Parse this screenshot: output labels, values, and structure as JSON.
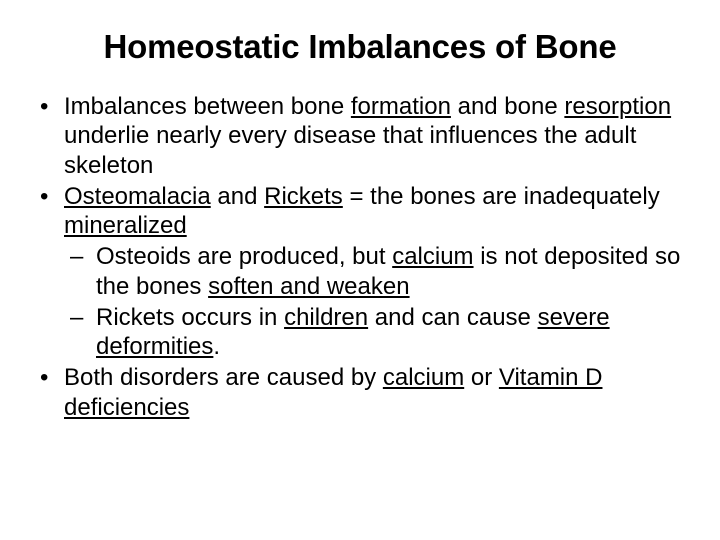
{
  "slide": {
    "title": "Homeostatic Imbalances of Bone",
    "title_fontsize": 33,
    "body_fontsize": 24,
    "background_color": "#ffffff",
    "text_color": "#000000",
    "font_family": "Arial",
    "bullets": [
      {
        "segments": [
          {
            "t": "Imbalances between bone ",
            "u": false
          },
          {
            "t": "formation",
            "u": true
          },
          {
            "t": " and bone ",
            "u": false
          },
          {
            "t": "resorption",
            "u": true
          },
          {
            "t": " underlie nearly every disease that influences the adult skeleton",
            "u": false
          }
        ]
      },
      {
        "segments": [
          {
            "t": "Osteomalacia",
            "u": true
          },
          {
            "t": " and ",
            "u": false
          },
          {
            "t": "Rickets",
            "u": true
          },
          {
            "t": " = the bones are inadequately ",
            "u": false
          },
          {
            "t": "mineralized",
            "u": true
          }
        ],
        "children": [
          {
            "segments": [
              {
                "t": "Osteoids are produced, but ",
                "u": false
              },
              {
                "t": "calcium",
                "u": true
              },
              {
                "t": " is not deposited so the bones ",
                "u": false
              },
              {
                "t": "soften and weaken",
                "u": true
              }
            ]
          },
          {
            "segments": [
              {
                "t": "Rickets occurs in ",
                "u": false
              },
              {
                "t": "children",
                "u": true
              },
              {
                "t": " and can cause ",
                "u": false
              },
              {
                "t": "severe deformities",
                "u": true
              },
              {
                "t": ".",
                "u": false
              }
            ]
          }
        ]
      },
      {
        "segments": [
          {
            "t": "Both disorders are caused by ",
            "u": false
          },
          {
            "t": "calcium",
            "u": true
          },
          {
            "t": " or ",
            "u": false
          },
          {
            "t": "Vitamin D deficiencies",
            "u": true
          }
        ]
      }
    ]
  }
}
